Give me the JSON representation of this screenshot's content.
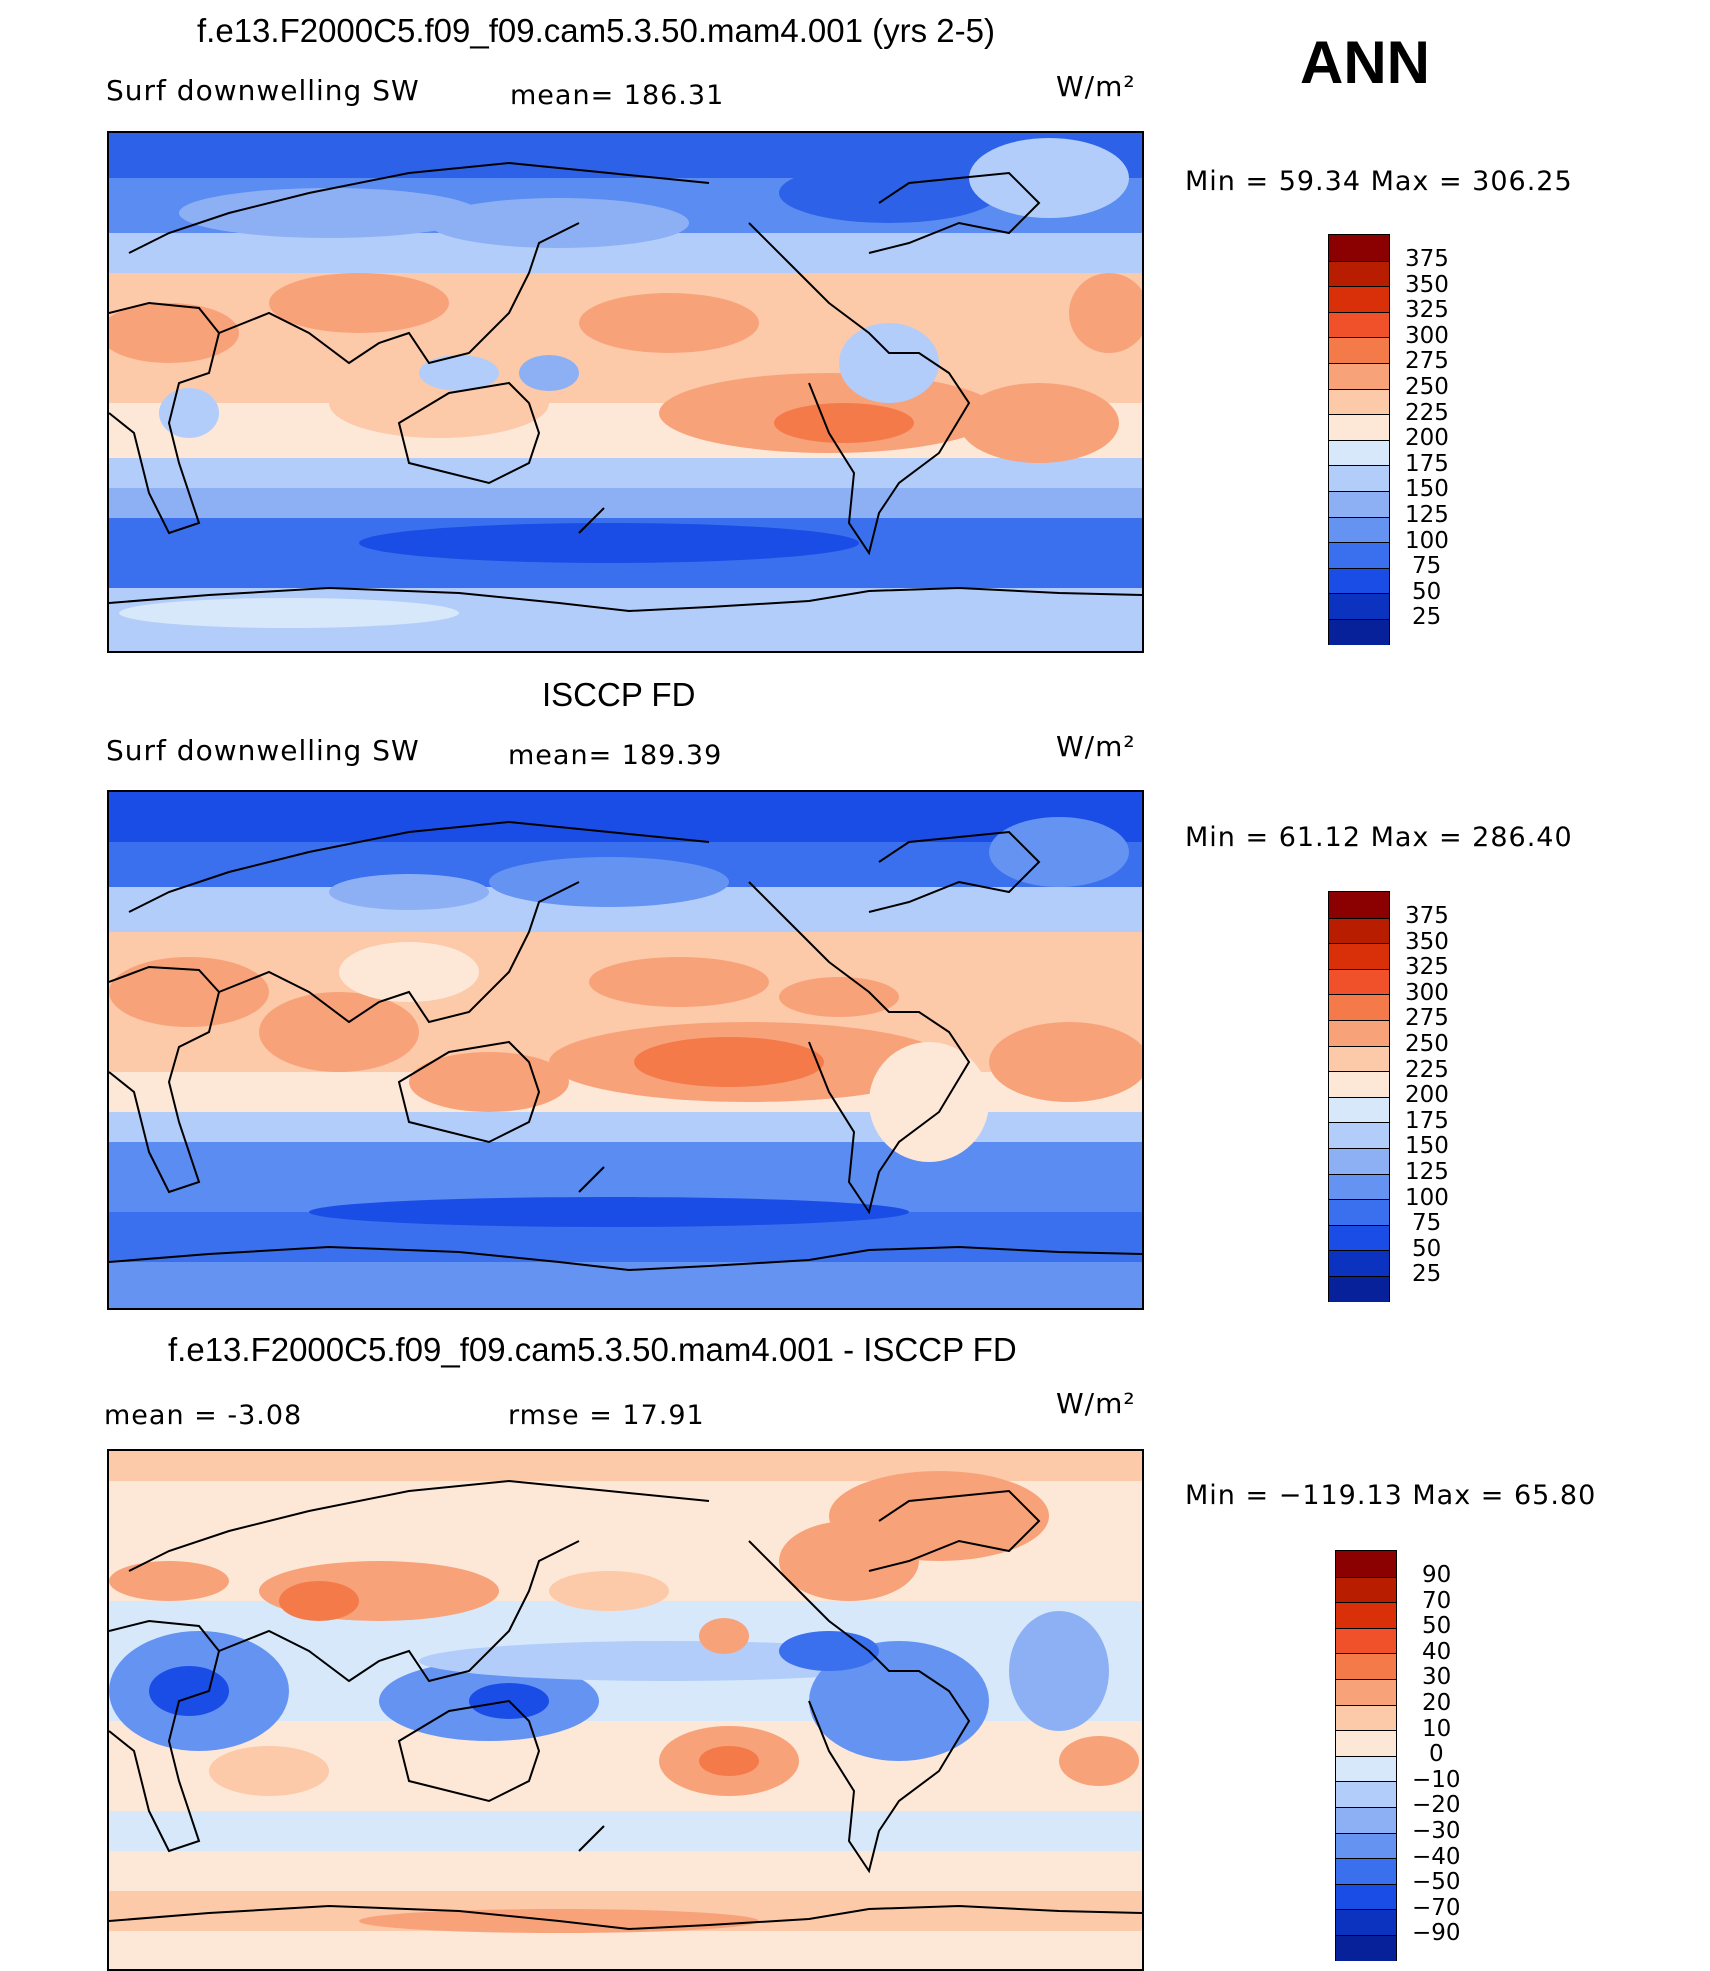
{
  "season": "ANN",
  "panels": [
    {
      "title": "f.e13.F2000C5.f09_f09.cam5.3.50.mam4.001 (yrs 2-5)",
      "var_label": "Surf downwelling SW",
      "stat_label": "mean= 186.31",
      "units": "W/m²",
      "minmax": "Min =   59.34 Max = 306.25",
      "levels": [
        "375",
        "350",
        "325",
        "300",
        "275",
        "250",
        "225",
        "200",
        "175",
        "150",
        "125",
        "100",
        "75",
        "50",
        "25"
      ],
      "colors": [
        "#8b0000",
        "#b81d00",
        "#d9300a",
        "#f0502a",
        "#f47a4a",
        "#f8a27a",
        "#fcc9a9",
        "#fde8d8",
        "#d6e8fa",
        "#b3cdfa",
        "#8db0f5",
        "#6593f2",
        "#3a70ed",
        "#1a4de6",
        "#0c33bf",
        "#06219a"
      ]
    },
    {
      "title": "ISCCP FD",
      "var_label": "Surf downwelling SW",
      "stat_label": "mean= 189.39",
      "units": "W/m²",
      "minmax": "Min =   61.12 Max = 286.40",
      "levels": [
        "375",
        "350",
        "325",
        "300",
        "275",
        "250",
        "225",
        "200",
        "175",
        "150",
        "125",
        "100",
        "75",
        "50",
        "25"
      ],
      "colors": [
        "#8b0000",
        "#b81d00",
        "#d9300a",
        "#f0502a",
        "#f47a4a",
        "#f8a27a",
        "#fcc9a9",
        "#fde8d8",
        "#d6e8fa",
        "#b3cdfa",
        "#8db0f5",
        "#6593f2",
        "#3a70ed",
        "#1a4de6",
        "#0c33bf",
        "#06219a"
      ]
    },
    {
      "title": "f.e13.F2000C5.f09_f09.cam5.3.50.mam4.001 - ISCCP FD",
      "var_label": "mean =   -3.08",
      "stat_label": "rmse =   17.91",
      "units": "W/m²",
      "minmax": "Min = −119.13 Max =   65.80",
      "levels": [
        "90",
        "70",
        "50",
        "40",
        "30",
        "20",
        "10",
        "0",
        "−10",
        "−20",
        "−30",
        "−40",
        "−50",
        "−70",
        "−90"
      ],
      "colors": [
        "#8b0000",
        "#b81d00",
        "#d9300a",
        "#f0502a",
        "#f47a4a",
        "#f8a27a",
        "#fcc9a9",
        "#fde8d8",
        "#d6e8fa",
        "#b3cdfa",
        "#8db0f5",
        "#6593f2",
        "#3a70ed",
        "#1a4de6",
        "#0c33bf",
        "#06219a"
      ]
    }
  ]
}
